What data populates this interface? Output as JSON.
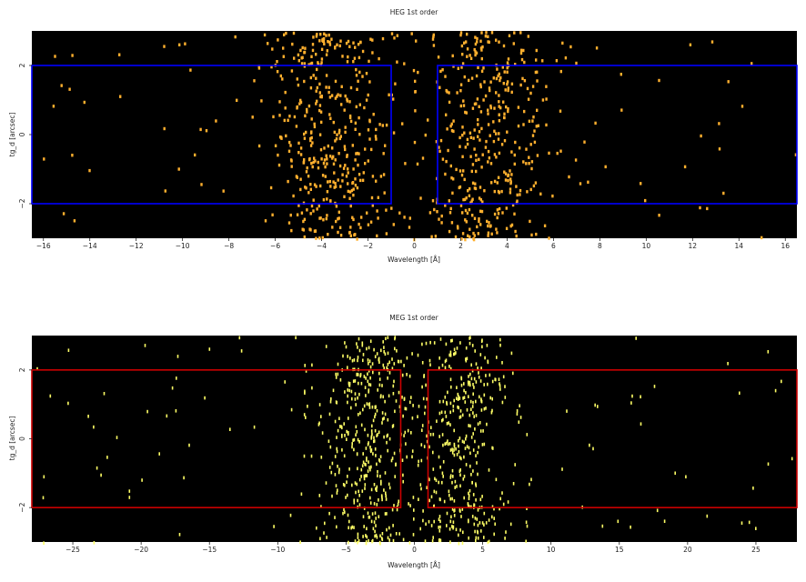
{
  "chart_data": [
    {
      "type": "heatmap",
      "title": "HEG 1st order",
      "xlabel": "Wavelength [Å]",
      "ylabel": "tg_d [arcsec]",
      "xlim": [
        -16.5,
        16.5
      ],
      "ylim": [
        -3.0,
        3.0
      ],
      "xticks": [
        -16,
        -14,
        -12,
        -10,
        -8,
        -6,
        -4,
        -2,
        0,
        2,
        4,
        6,
        8,
        10,
        12,
        14,
        16
      ],
      "yticks": [
        -2,
        0,
        2
      ],
      "background_color": "#000000",
      "event_color": "#ffb02e",
      "region_color": "#0000ff",
      "regions": [
        {
          "x": [
            -16.5,
            -1.0
          ],
          "y": [
            -2.0,
            2.0
          ]
        },
        {
          "x": [
            1.0,
            16.5
          ],
          "y": [
            -2.0,
            2.0
          ]
        }
      ],
      "event_clusters": [
        {
          "x_center": -3.5,
          "x_spread": 1.4,
          "count": 420
        },
        {
          "x_center": 3.2,
          "x_spread": 1.4,
          "count": 380
        }
      ],
      "background_event_count": 90
    },
    {
      "type": "heatmap",
      "title": "MEG 1st order",
      "xlabel": "Wavelength [Å]",
      "ylabel": "tg_d [arcsec]",
      "xlim": [
        -28,
        28
      ],
      "ylim": [
        -3.0,
        3.0
      ],
      "xticks": [
        -25,
        -20,
        -15,
        -10,
        -5,
        0,
        5,
        10,
        15,
        20,
        25
      ],
      "yticks": [
        -2,
        0,
        2
      ],
      "background_color": "#000000",
      "event_color": "#ffff66",
      "region_color": "#cc0000",
      "regions": [
        {
          "x": [
            -28,
            -1.0
          ],
          "y": [
            -2.0,
            2.0
          ]
        },
        {
          "x": [
            1.0,
            28
          ],
          "y": [
            -2.0,
            2.0
          ]
        }
      ],
      "event_clusters": [
        {
          "x_center": -3.5,
          "x_spread": 1.8,
          "count": 420
        },
        {
          "x_center": 3.4,
          "x_spread": 1.8,
          "count": 380
        }
      ],
      "background_event_count": 120
    }
  ]
}
